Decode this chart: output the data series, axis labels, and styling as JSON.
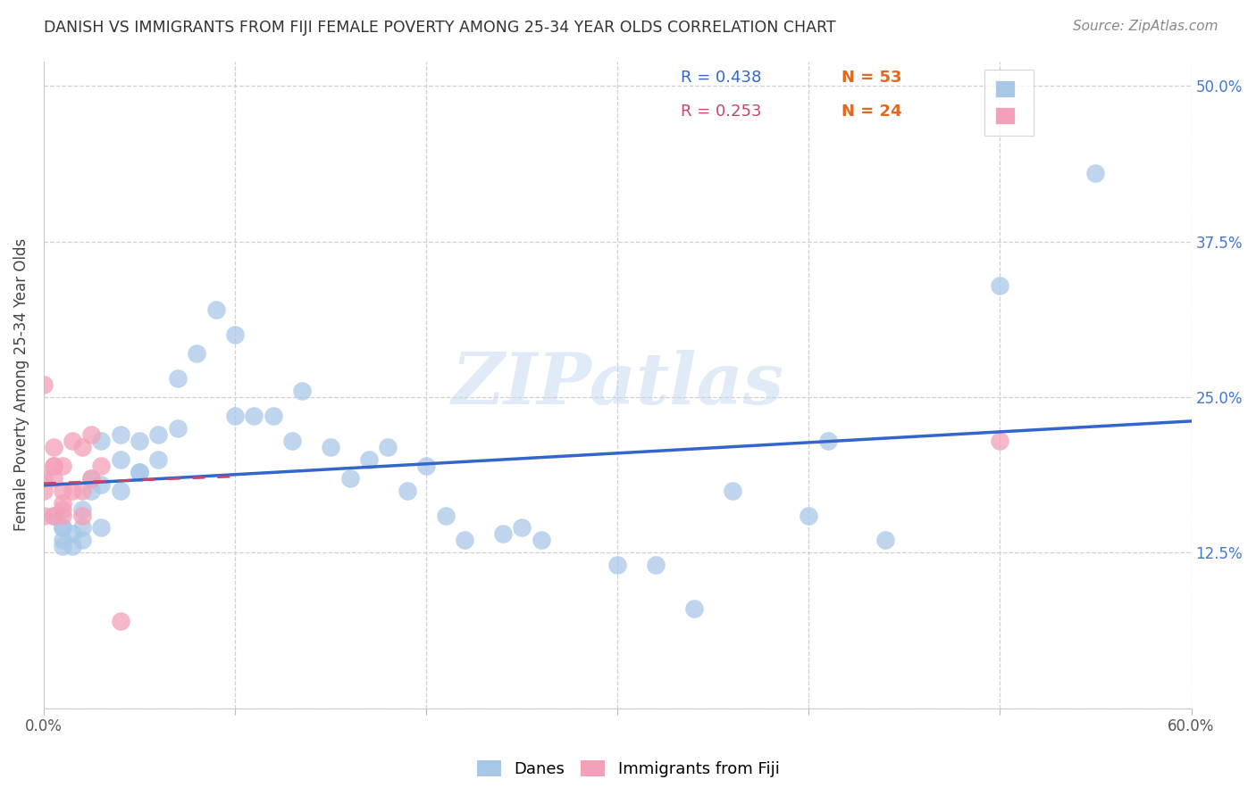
{
  "title": "DANISH VS IMMIGRANTS FROM FIJI FEMALE POVERTY AMONG 25-34 YEAR OLDS CORRELATION CHART",
  "source": "Source: ZipAtlas.com",
  "ylabel": "Female Poverty Among 25-34 Year Olds",
  "xlim": [
    0.0,
    0.6
  ],
  "ylim": [
    0.0,
    0.52
  ],
  "x_ticks": [
    0.0,
    0.1,
    0.2,
    0.3,
    0.4,
    0.5,
    0.6
  ],
  "y_ticks": [
    0.0,
    0.125,
    0.25,
    0.375,
    0.5
  ],
  "danes_color": "#a8c8e8",
  "fiji_color": "#f4a0b8",
  "danes_line_color": "#3366cc",
  "fiji_line_color": "#cc4466",
  "danes_x": [
    0.005,
    0.01,
    0.01,
    0.01,
    0.01,
    0.015,
    0.015,
    0.02,
    0.02,
    0.02,
    0.025,
    0.025,
    0.03,
    0.03,
    0.03,
    0.04,
    0.04,
    0.04,
    0.05,
    0.05,
    0.05,
    0.06,
    0.06,
    0.07,
    0.07,
    0.08,
    0.09,
    0.1,
    0.1,
    0.11,
    0.12,
    0.13,
    0.135,
    0.15,
    0.16,
    0.17,
    0.18,
    0.19,
    0.2,
    0.21,
    0.22,
    0.24,
    0.25,
    0.26,
    0.3,
    0.32,
    0.34,
    0.36,
    0.4,
    0.41,
    0.44,
    0.5,
    0.55
  ],
  "danes_y": [
    0.155,
    0.145,
    0.135,
    0.13,
    0.145,
    0.14,
    0.13,
    0.145,
    0.16,
    0.135,
    0.175,
    0.185,
    0.145,
    0.18,
    0.215,
    0.175,
    0.2,
    0.22,
    0.19,
    0.215,
    0.19,
    0.2,
    0.22,
    0.225,
    0.265,
    0.285,
    0.32,
    0.235,
    0.3,
    0.235,
    0.235,
    0.215,
    0.255,
    0.21,
    0.185,
    0.2,
    0.21,
    0.175,
    0.195,
    0.155,
    0.135,
    0.14,
    0.145,
    0.135,
    0.115,
    0.115,
    0.08,
    0.175,
    0.155,
    0.215,
    0.135,
    0.34,
    0.43
  ],
  "fiji_x": [
    0.0,
    0.0,
    0.0,
    0.0,
    0.005,
    0.005,
    0.005,
    0.005,
    0.005,
    0.01,
    0.01,
    0.01,
    0.01,
    0.01,
    0.015,
    0.015,
    0.02,
    0.02,
    0.02,
    0.025,
    0.025,
    0.03,
    0.04,
    0.5
  ],
  "fiji_y": [
    0.155,
    0.175,
    0.185,
    0.26,
    0.155,
    0.185,
    0.195,
    0.21,
    0.195,
    0.155,
    0.16,
    0.165,
    0.175,
    0.195,
    0.175,
    0.215,
    0.155,
    0.175,
    0.21,
    0.22,
    0.185,
    0.195,
    0.07,
    0.215
  ],
  "watermark_text": "ZIPatlas",
  "bg_color": "#ffffff",
  "grid_color": "#d0d0d0",
  "right_label_color": "#4477cc",
  "title_color": "#333333",
  "source_color": "#888888"
}
